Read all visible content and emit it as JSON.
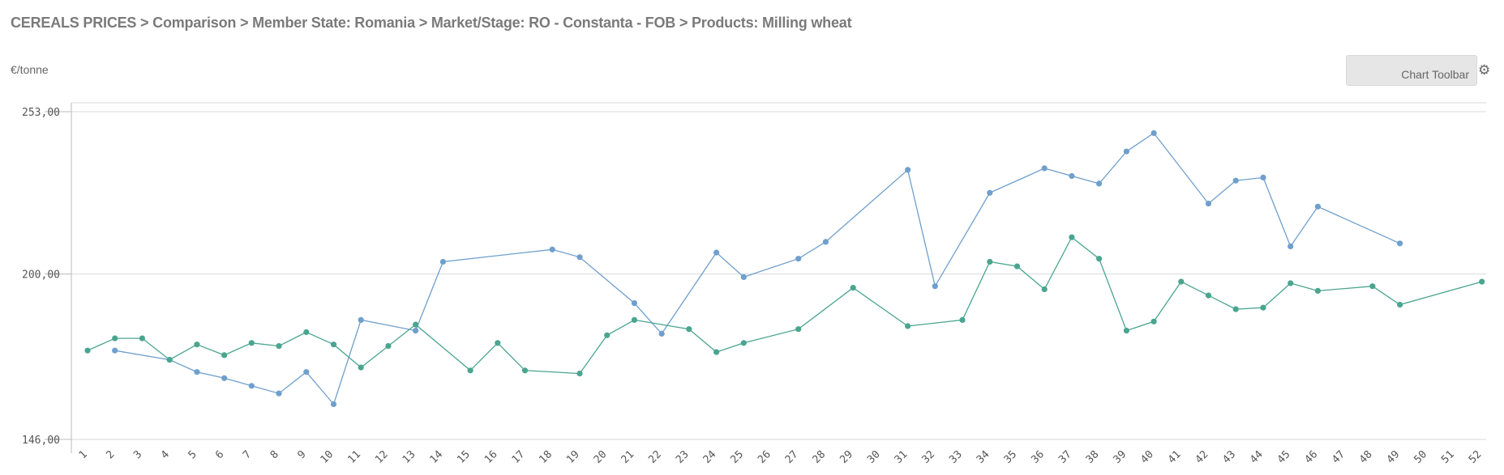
{
  "breadcrumb": "CEREALS PRICES > Comparison > Member State: Romania > Market/Stage: RO - Constanta - FOB > Products: Milling wheat",
  "toolbar": {
    "label": "Chart Toolbar",
    "icon": "gear-icon"
  },
  "chart_data": {
    "type": "line",
    "ylabel": "€/tonne",
    "ylim": [
      146,
      253
    ],
    "yticks": [
      "253,00",
      "200,00",
      "146,00"
    ],
    "yticks_values": [
      253,
      200,
      146
    ],
    "grid": true,
    "x": [
      1,
      2,
      3,
      4,
      5,
      6,
      7,
      8,
      9,
      10,
      11,
      12,
      13,
      14,
      15,
      16,
      17,
      18,
      19,
      20,
      21,
      22,
      23,
      24,
      25,
      26,
      27,
      28,
      29,
      30,
      31,
      32,
      33,
      34,
      35,
      36,
      37,
      38,
      39,
      40,
      41,
      42,
      43,
      44,
      45,
      46,
      47,
      48,
      49,
      50,
      51,
      52
    ],
    "series": [
      {
        "color": "#6f9fcc",
        "points": [
          [
            2,
            175
          ],
          [
            4,
            172
          ],
          [
            5,
            168
          ],
          [
            6,
            166
          ],
          [
            7,
            163.5
          ],
          [
            8,
            161
          ],
          [
            9,
            168
          ],
          [
            10,
            157.5
          ],
          [
            11,
            185
          ],
          [
            13,
            181.5
          ],
          [
            14,
            204
          ],
          [
            18,
            208
          ],
          [
            19,
            205.5
          ],
          [
            21,
            190.5
          ],
          [
            22,
            180.5
          ],
          [
            24,
            207
          ],
          [
            25,
            199
          ],
          [
            27,
            205
          ],
          [
            28,
            210.5
          ],
          [
            31,
            234
          ],
          [
            32,
            196
          ],
          [
            34,
            226.5
          ],
          [
            36,
            234.5
          ],
          [
            37,
            232
          ],
          [
            38,
            229.5
          ],
          [
            39,
            240
          ],
          [
            40,
            246
          ],
          [
            42,
            223
          ],
          [
            43,
            230.5
          ],
          [
            44,
            231.5
          ],
          [
            45,
            209
          ],
          [
            46,
            222
          ],
          [
            49,
            210
          ]
        ]
      },
      {
        "color": "#4aa58f",
        "points": [
          [
            1,
            175
          ],
          [
            2,
            179
          ],
          [
            3,
            179
          ],
          [
            4,
            172
          ],
          [
            5,
            177
          ],
          [
            6,
            173.5
          ],
          [
            7,
            177.5
          ],
          [
            8,
            176.5
          ],
          [
            9,
            181
          ],
          [
            10,
            177
          ],
          [
            11,
            169.5
          ],
          [
            12,
            176.5
          ],
          [
            13,
            183.5
          ],
          [
            15,
            168.5
          ],
          [
            16,
            177.5
          ],
          [
            17,
            168.5
          ],
          [
            19,
            167.5
          ],
          [
            20,
            180
          ],
          [
            21,
            185
          ],
          [
            23,
            182
          ],
          [
            24,
            174.5
          ],
          [
            25,
            177.5
          ],
          [
            27,
            182
          ],
          [
            29,
            195.5
          ],
          [
            31,
            183
          ],
          [
            33,
            185
          ],
          [
            34,
            204
          ],
          [
            35,
            202.5
          ],
          [
            36,
            195
          ],
          [
            37,
            212
          ],
          [
            38,
            205
          ],
          [
            39,
            181.5
          ],
          [
            40,
            184.5
          ],
          [
            41,
            197.5
          ],
          [
            42,
            193
          ],
          [
            43,
            188.5
          ],
          [
            44,
            189
          ],
          [
            45,
            197
          ],
          [
            46,
            194.5
          ],
          [
            48,
            196
          ],
          [
            49,
            190
          ],
          [
            52,
            197.5
          ]
        ]
      }
    ]
  }
}
